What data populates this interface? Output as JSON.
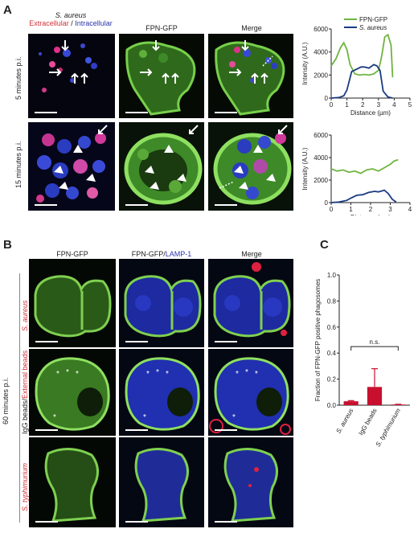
{
  "panelA": {
    "letter": "A",
    "organism": "S. aureus",
    "label_extracellular": "Extracellular",
    "label_sep": " / ",
    "label_intracellular": "Intracellular",
    "col_fpn": "FPN-GFP",
    "col_merge": "Merge",
    "row1": "5 minutes p.i.",
    "row2": "15 minutes p.i.",
    "legend_fpn": "FPN-GFP",
    "legend_saureus": "S. aureus",
    "chart_data": [
      {
        "type": "line",
        "xlabel": "Distance (µm)",
        "ylabel": "Intensity (A.U.)",
        "xlim": [
          0,
          5
        ],
        "ylim": [
          0,
          6000
        ],
        "xticks": [
          "0",
          "1",
          "2",
          "3",
          "4",
          "5"
        ],
        "yticks": [
          "0",
          "2000",
          "4000",
          "6000"
        ],
        "series": [
          {
            "name": "FPN-GFP",
            "color": "#6fb43f",
            "x": [
              0,
              0.3,
              0.6,
              0.8,
              1.0,
              1.2,
              1.5,
              1.8,
              2.1,
              2.4,
              2.7,
              3.0,
              3.2,
              3.4,
              3.6,
              3.8,
              3.9
            ],
            "y": [
              2800,
              3400,
              4400,
              4800,
              4200,
              2900,
              2100,
              2000,
              2050,
              2000,
              2100,
              2400,
              3600,
              5300,
              5500,
              4600,
              1800
            ]
          },
          {
            "name": "S. aureus",
            "color": "#1a3a82",
            "x": [
              0,
              0.5,
              0.8,
              1.0,
              1.3,
              1.6,
              1.9,
              2.1,
              2.4,
              2.7,
              2.9,
              3.1,
              3.3,
              3.6,
              3.9
            ],
            "y": [
              0,
              50,
              200,
              700,
              2300,
              2500,
              2700,
              2700,
              2600,
              2900,
              2800,
              2400,
              600,
              100,
              0
            ]
          }
        ]
      },
      {
        "type": "line",
        "xlabel": "Distance (µm)",
        "ylabel": "Intensity (A.U.)",
        "xlim": [
          0,
          4
        ],
        "ylim": [
          0,
          6000
        ],
        "xticks": [
          "0",
          "1",
          "2",
          "3",
          "4"
        ],
        "yticks": [
          "0",
          "2000",
          "4000",
          "6000"
        ],
        "series": [
          {
            "name": "FPN-GFP",
            "color": "#6fb43f",
            "x": [
              0,
              0.3,
              0.6,
              0.9,
              1.2,
              1.5,
              1.8,
              2.1,
              2.4,
              2.7,
              3.0,
              3.2,
              3.4
            ],
            "y": [
              3000,
              2800,
              2900,
              2700,
              2800,
              2600,
              2900,
              3000,
              2800,
              3100,
              3400,
              3700,
              3800
            ]
          },
          {
            "name": "S. aureus",
            "color": "#1a3a82",
            "x": [
              0,
              0.4,
              0.8,
              1.0,
              1.3,
              1.6,
              1.9,
              2.2,
              2.4,
              2.7,
              2.9,
              3.1,
              3.3
            ],
            "y": [
              0,
              50,
              200,
              400,
              650,
              700,
              900,
              1000,
              950,
              1100,
              800,
              300,
              50
            ]
          }
        ]
      }
    ]
  },
  "panelB": {
    "letter": "B",
    "col_fpn": "FPN-GFP",
    "col_fpn_lamp": "FPN-GFP/",
    "col_lamp": "LAMP-1",
    "col_merge": "Merge",
    "timepoint": "60 minutes p.i.",
    "row1": "S. aureus",
    "row2a": "IgG beads/",
    "row2b": "External beads",
    "row3": "S. typhimurium"
  },
  "panelC": {
    "letter": "C",
    "chart_data": {
      "type": "bar",
      "categories": [
        "S. aureus",
        "IgG beads",
        "S. typhimurium"
      ],
      "values": [
        0.03,
        0.14,
        0.005
      ],
      "errors": [
        0.005,
        0.14,
        0.002
      ],
      "ylabel": "Fraction of FPN-GFP positive phagosomes",
      "ylim": [
        0,
        1.0
      ],
      "yticks": [
        "0.0",
        "0.2",
        "0.4",
        "0.6",
        "0.8",
        "1.0"
      ],
      "annotation": "n.s.",
      "bar_color": "#c8102e"
    }
  }
}
